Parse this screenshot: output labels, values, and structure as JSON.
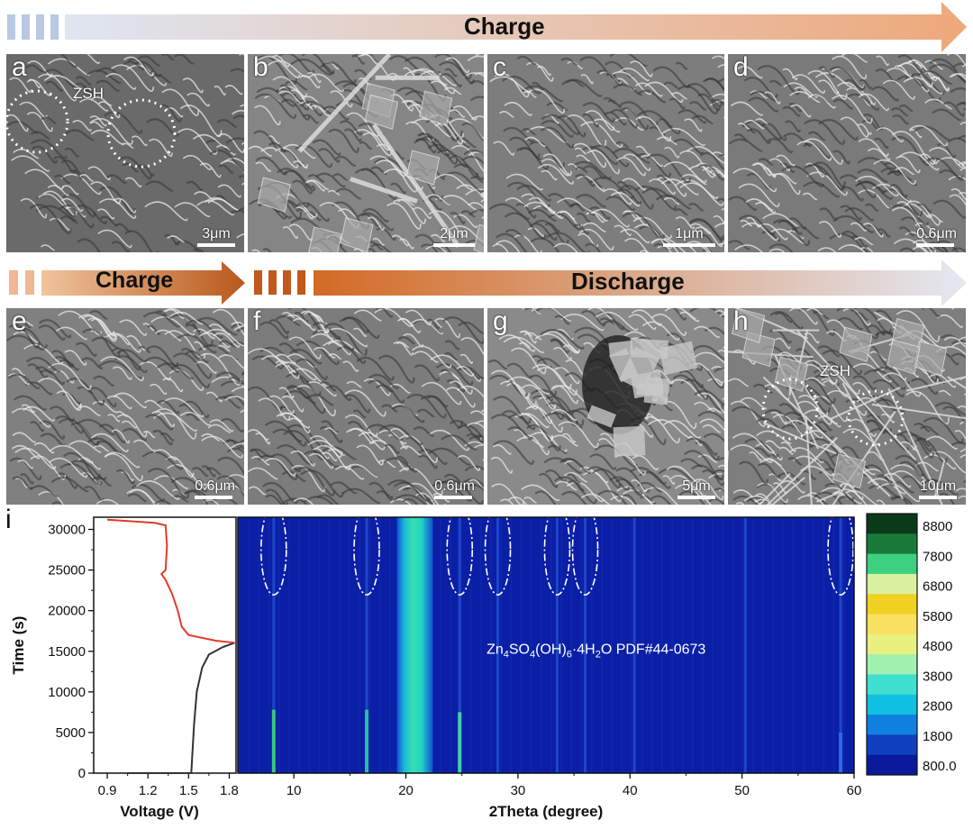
{
  "banners": {
    "top": {
      "label": "Charge"
    },
    "mid_left": {
      "label": "Charge"
    },
    "mid_right": {
      "label": "Discharge"
    }
  },
  "panels": [
    {
      "id": "a",
      "label": "a",
      "scale": "3μm",
      "annotation": "ZSH",
      "tone": "#6a6a6a"
    },
    {
      "id": "b",
      "label": "b",
      "scale": "2μm",
      "annotation": "",
      "tone": "#858585"
    },
    {
      "id": "c",
      "label": "c",
      "scale": "1μm",
      "annotation": "",
      "tone": "#7d7d7d"
    },
    {
      "id": "d",
      "label": "d",
      "scale": "0.6μm",
      "annotation": "",
      "tone": "#7a7a7a"
    },
    {
      "id": "e",
      "label": "e",
      "scale": "0.6μm",
      "annotation": "",
      "tone": "#808080"
    },
    {
      "id": "f",
      "label": "f",
      "scale": "0.6μm",
      "annotation": "",
      "tone": "#7c7c7c"
    },
    {
      "id": "g",
      "label": "g",
      "scale": "5μm",
      "annotation": "",
      "tone": "#8a8a8a"
    },
    {
      "id": "h",
      "label": "h",
      "scale": "10μm",
      "annotation": "ZSH",
      "tone": "#7e7e7e"
    }
  ],
  "panel_i": {
    "label": "i",
    "phase_label": "Zn4SO4(OH)6·4H2O PDF#44-0673",
    "phase_parts": [
      "Zn",
      "4",
      "SO",
      "4",
      "(OH)",
      "6",
      "·4H",
      "2",
      "O PDF#44-0673"
    ],
    "colorbar_ticks": [
      "8800",
      "7800",
      "6800",
      "5800",
      "4800",
      "3800",
      "2800",
      "1800",
      "800.0"
    ],
    "colorbar_colors": [
      "#0a3a1a",
      "#1a7a3a",
      "#3dd080",
      "#d8f0a0",
      "#f0d020",
      "#f8e060",
      "#e8f080",
      "#a0f0b0",
      "#40e0d0",
      "#10c0e0",
      "#1080e0",
      "#1040c0",
      "#0a1a9a"
    ]
  },
  "chart_data": [
    {
      "type": "line",
      "xlabel": "Voltage (V)",
      "ylabel": "Time (s)",
      "xlim": [
        0.8,
        1.85
      ],
      "ylim": [
        0,
        31500
      ],
      "xticks": [
        "0.9",
        "1.2",
        "1.5",
        "1.8"
      ],
      "xticks_minor": [
        "1.05",
        "1.35",
        "1.65"
      ],
      "yticks": [
        "0",
        "5000",
        "10000",
        "15000",
        "20000",
        "25000",
        "30000"
      ],
      "series": [
        {
          "color": "#333333",
          "points": [
            [
              1.05,
              0
            ],
            [
              1.52,
              0
            ],
            [
              1.54,
              6000
            ],
            [
              1.56,
              10000
            ],
            [
              1.6,
              13000
            ],
            [
              1.65,
              14600
            ],
            [
              1.75,
              15500
            ],
            [
              1.84,
              16050
            ]
          ]
        },
        {
          "color": "#e03c2a",
          "points": [
            [
              1.84,
              16050
            ],
            [
              1.7,
              16300
            ],
            [
              1.5,
              17000
            ],
            [
              1.45,
              18000
            ],
            [
              1.42,
              20000
            ],
            [
              1.38,
              22000
            ],
            [
              1.33,
              23800
            ],
            [
              1.3,
              24500
            ],
            [
              1.33,
              25000
            ],
            [
              1.34,
              28000
            ],
            [
              1.33,
              30500
            ],
            [
              1.25,
              30800
            ],
            [
              0.9,
              31200
            ]
          ]
        }
      ]
    },
    {
      "type": "heatmap",
      "xlabel": "2Theta (degree)",
      "xlim": [
        5,
        60
      ],
      "ylim": [
        0,
        31500
      ],
      "xticks": [
        "10",
        "20",
        "30",
        "40",
        "50",
        "60"
      ],
      "colorbar_range": [
        800,
        8800
      ],
      "peaks_2theta": [
        8.2,
        16.5,
        19.8,
        21.2,
        24.8,
        28.2,
        33.5,
        36,
        40.4,
        50.3,
        58.8
      ],
      "highlighted_peaks_2theta": [
        8.2,
        16.5,
        24.8,
        28.2,
        33.5,
        36,
        58.8
      ]
    }
  ]
}
